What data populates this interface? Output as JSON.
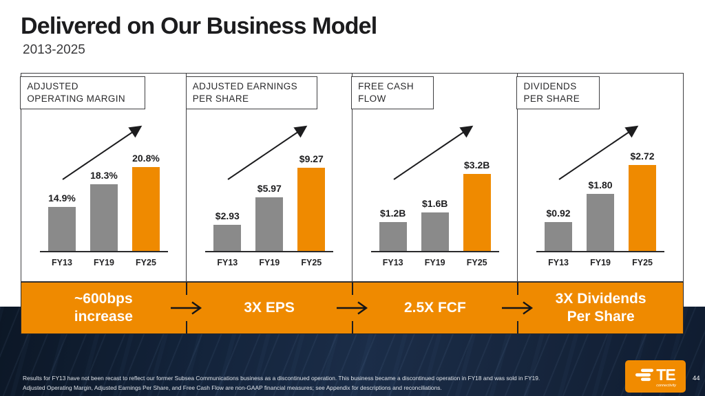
{
  "slide": {
    "title": "Delivered on Our Business Model",
    "subtitle": "2013-2025",
    "page_number": "44"
  },
  "logo": {
    "brand": "TE",
    "tagline": "connectivity"
  },
  "colors": {
    "accent_orange": "#EF8A00",
    "bar_gray": "#8A8A8A",
    "ink": "#1D1D1F",
    "panel_border": "#3E3E40",
    "navy_band": "#13233A",
    "banner_text": "#FFFFFF"
  },
  "banner": {
    "cells": [
      {
        "lines": [
          "~600bps",
          "increase"
        ]
      },
      {
        "lines": [
          "3X EPS"
        ]
      },
      {
        "lines": [
          "2.5X FCF"
        ]
      },
      {
        "lines": [
          "3X Dividends",
          "Per Share"
        ]
      }
    ]
  },
  "footnote": {
    "line1": "Results for FY13 have not been recast to reflect our former Subsea Communications business as a discontinued operation. This business became a discontinued operation in FY18 and was sold in FY19.",
    "line2": "Adjusted Operating Margin, Adjusted Earnings Per Share, and Free Cash Flow are non-GAAP financial measures; see Appendix for descriptions and reconciliations."
  },
  "chart_data": [
    {
      "type": "bar",
      "title": "ADJUSTED OPERATING MARGIN",
      "title_lines": [
        "ADJUSTED",
        "OPERATING MARGIN"
      ],
      "categories": [
        "FY13",
        "FY19",
        "FY25"
      ],
      "values": [
        14.9,
        18.3,
        20.8
      ],
      "value_labels": [
        "14.9%",
        "18.3%",
        "20.8%"
      ],
      "ylim": [
        8.5,
        21.6
      ],
      "highlight_index": 2,
      "summary": "~600bps increase"
    },
    {
      "type": "bar",
      "title": "ADJUSTED EARNINGS PER SHARE",
      "title_lines": [
        "ADJUSTED EARNINGS",
        "PER SHARE"
      ],
      "categories": [
        "FY13",
        "FY19",
        "FY25"
      ],
      "values": [
        2.93,
        5.97,
        9.27
      ],
      "value_labels": [
        "$2.93",
        "$5.97",
        "$9.27"
      ],
      "ylim": [
        0,
        10
      ],
      "highlight_index": 2,
      "summary": "3X EPS"
    },
    {
      "type": "bar",
      "title": "FREE CASH FLOW",
      "title_lines": [
        "FREE CASH",
        "FLOW"
      ],
      "categories": [
        "FY13",
        "FY19",
        "FY25"
      ],
      "values": [
        1.2,
        1.6,
        3.2
      ],
      "value_labels": [
        "$1.2B",
        "$1.6B",
        "$3.2B"
      ],
      "ylim": [
        0,
        3.7
      ],
      "highlight_index": 2,
      "summary": "2.5X FCF"
    },
    {
      "type": "bar",
      "title": "DIVIDENDS PER SHARE",
      "title_lines": [
        "DIVIDENDS",
        "PER SHARE"
      ],
      "categories": [
        "FY13",
        "FY19",
        "FY25"
      ],
      "values": [
        0.92,
        1.8,
        2.72
      ],
      "value_labels": [
        "$0.92",
        "$1.80",
        "$2.72"
      ],
      "ylim": [
        0,
        2.82
      ],
      "highlight_index": 2,
      "summary": "3X Dividends Per Share"
    }
  ]
}
